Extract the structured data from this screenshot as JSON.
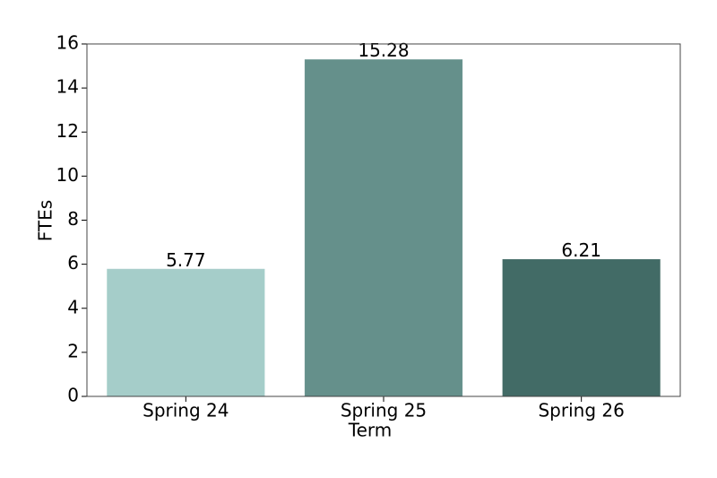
{
  "chart_data": {
    "type": "bar",
    "x_label": "Term",
    "y_label": "FTEs",
    "categories": [
      "Spring 24",
      "Spring 25",
      "Spring 26"
    ],
    "values": [
      5.77,
      15.28,
      6.21
    ],
    "colors": [
      "#a5cdc9",
      "#65908b",
      "#426b66"
    ],
    "ylim": [
      0,
      16
    ],
    "yticks": [
      0,
      2,
      4,
      6,
      8,
      10,
      12,
      14,
      16
    ],
    "grid": false
  }
}
